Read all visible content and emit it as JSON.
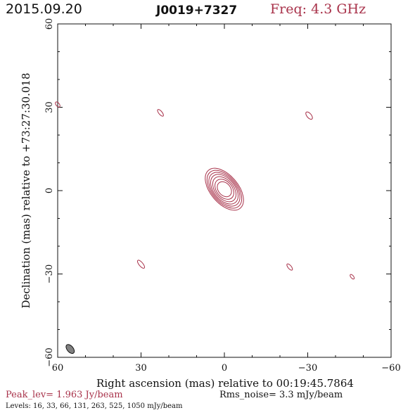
{
  "header": {
    "date": "2015.09.20",
    "source": "J0019+7327",
    "freq": "Freq: 4.3 GHz"
  },
  "chart_data": {
    "type": "contour",
    "xlabel": "Right ascension (mas) relative to 00:19:45.7864",
    "ylabel": "Declination (mas) relative to +73:27:30.018",
    "xlim": [
      60,
      -60
    ],
    "ylim": [
      -60,
      60
    ],
    "x_ticks": [
      60,
      30,
      0,
      -30,
      -60
    ],
    "y_ticks": [
      -60,
      -30,
      0,
      30,
      60
    ],
    "x_tick_labels": [
      "60",
      "30",
      "0",
      "−30",
      "−60"
    ],
    "y_tick_labels": [
      "−60",
      "−30",
      "0",
      "30",
      "60"
    ],
    "contour_color": "#a8324a",
    "beam_color": "#808080",
    "core": {
      "x": 0,
      "y": 0.5,
      "angle_deg": -40,
      "rings": [
        {
          "a": 3.0,
          "b": 2.2
        },
        {
          "a": 4.1,
          "b": 2.8
        },
        {
          "a": 5.2,
          "b": 3.3
        },
        {
          "a": 6.2,
          "b": 3.8
        },
        {
          "a": 7.1,
          "b": 4.2
        },
        {
          "a": 8.0,
          "b": 4.6
        },
        {
          "a": 8.9,
          "b": 5.0
        }
      ]
    },
    "noise_blobs": [
      {
        "x": 60,
        "y": 31,
        "a": 1.1,
        "b": 0.6,
        "angle_deg": -40
      },
      {
        "x": 23,
        "y": 28,
        "a": 1.5,
        "b": 0.6,
        "angle_deg": -40
      },
      {
        "x": -30.5,
        "y": 27,
        "a": 1.6,
        "b": 0.8,
        "angle_deg": -40
      },
      {
        "x": 30,
        "y": -26.5,
        "a": 1.8,
        "b": 0.7,
        "angle_deg": -40
      },
      {
        "x": -23.5,
        "y": -27.5,
        "a": 1.4,
        "b": 0.6,
        "angle_deg": -40
      },
      {
        "x": -46,
        "y": -31,
        "a": 1.0,
        "b": 0.5,
        "angle_deg": -40
      }
    ],
    "beam": {
      "x": 55.5,
      "y": -57,
      "a": 1.9,
      "b": 1.1,
      "angle_deg": -40
    },
    "peak_text": "Peak_lev=  1.963 Jy/beam",
    "rms_text": "Rms_noise=   3.3 mJy/beam",
    "levels_text": "Levels:  16,  33,  66, 131, 263, 525, 1050 mJy/beam"
  }
}
